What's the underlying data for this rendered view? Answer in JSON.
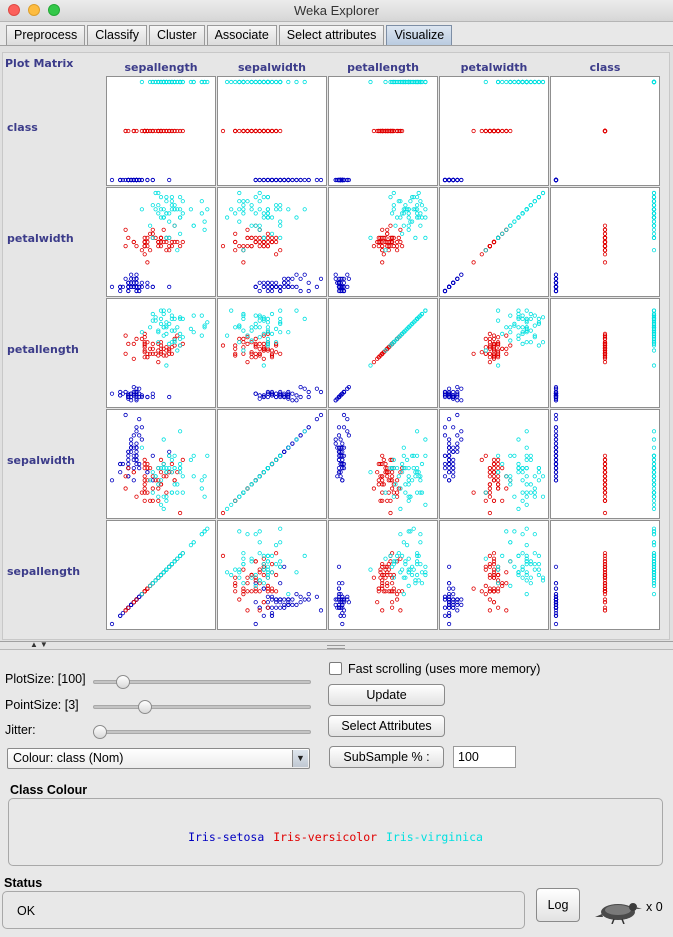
{
  "window": {
    "title": "Weka Explorer"
  },
  "tabs": [
    {
      "label": "Preprocess",
      "active": false
    },
    {
      "label": "Classify",
      "active": false
    },
    {
      "label": "Cluster",
      "active": false
    },
    {
      "label": "Associate",
      "active": false
    },
    {
      "label": "Select attributes",
      "active": false
    },
    {
      "label": "Visualize",
      "active": true
    }
  ],
  "matrix": {
    "label": "Plot Matrix",
    "columns": [
      "sepallength",
      "sepalwidth",
      "petallength",
      "petalwidth",
      "class"
    ],
    "rows": [
      "class",
      "petalwidth",
      "petallength",
      "sepalwidth",
      "sepallength"
    ]
  },
  "controls": {
    "plot_size_label": "PlotSize: [100]",
    "plot_size_value": 100,
    "point_size_label": "PointSize: [3]",
    "point_size_value": 3,
    "jitter_label": "Jitter:",
    "jitter_value": 0,
    "colour_select": "Colour: class  (Nom)",
    "fast_scrolling_label": "Fast scrolling (uses more memory)",
    "fast_scrolling_checked": false,
    "update_button": "Update",
    "select_attributes_button": "Select Attributes",
    "subsample_button": "SubSample % :",
    "subsample_value": "100"
  },
  "class_colour": {
    "title": "Class Colour",
    "classes": [
      {
        "name": "Iris-setosa",
        "color": "#0000c0"
      },
      {
        "name": "Iris-versicolor",
        "color": "#e00000"
      },
      {
        "name": "Iris-virginica",
        "color": "#00e0e0"
      }
    ]
  },
  "status": {
    "title": "Status",
    "text": "OK",
    "log_button": "Log",
    "count": "x 0"
  },
  "icons": {
    "bird": "weka-bird-icon"
  }
}
